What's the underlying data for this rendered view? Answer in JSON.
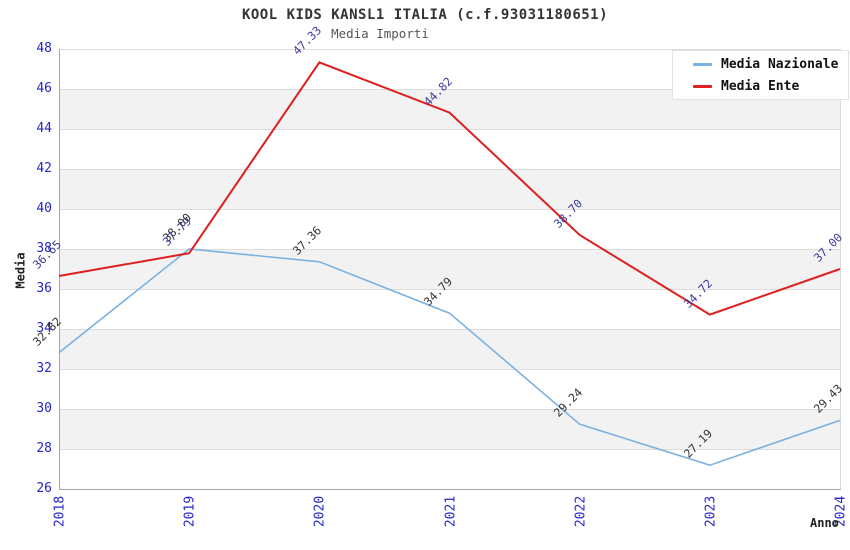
{
  "title": "KOOL KIDS KANSL1 ITALIA (c.f.93031180651)",
  "subtitle": "Media Importi",
  "chart_data": {
    "type": "line",
    "x": [
      2018,
      2019,
      2020,
      2021,
      2022,
      2023,
      2024
    ],
    "xlabel": "Anno",
    "ylabel": "Media",
    "ylim": [
      26,
      48
    ],
    "ytick_step": 2,
    "grid": "horizontal gridlines with alternating gray bands",
    "legend_position": "top-right",
    "series": [
      {
        "name": "Media Nazionale",
        "color": "#7ab2e2",
        "label_color": "#333333",
        "values": [
          32.82,
          38.0,
          37.36,
          34.79,
          29.24,
          27.19,
          29.43
        ]
      },
      {
        "name": "Media Ente",
        "color": "#dd2020",
        "label_color": "#3b3b99",
        "values": [
          36.65,
          37.79,
          47.33,
          44.82,
          38.7,
          34.72,
          37.0
        ]
      }
    ]
  },
  "colors": {
    "axis_tick_text": "#2525cc",
    "band_gray": "#f2f2f2",
    "gridline": "#dcdcdc",
    "axis_line": "#a6a6a6",
    "title_text": "#333333",
    "subtitle_text": "#555555"
  }
}
